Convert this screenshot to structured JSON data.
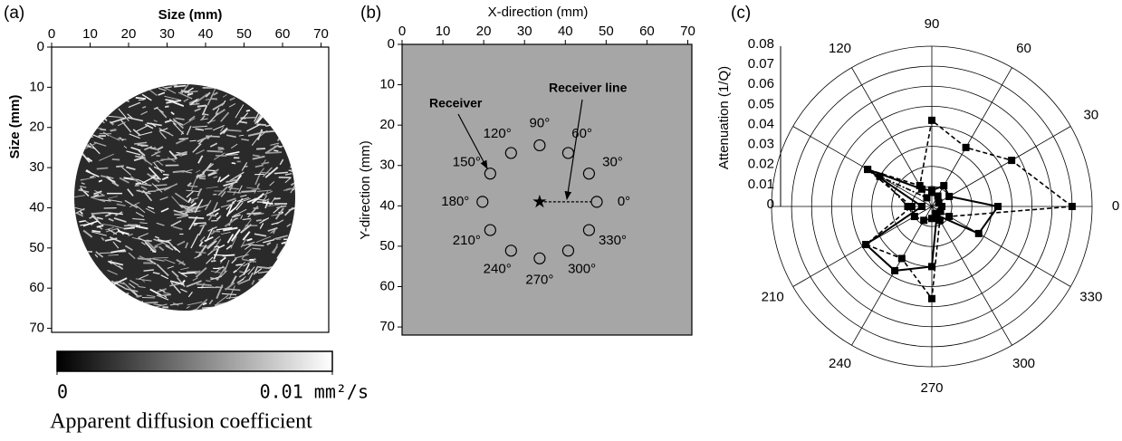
{
  "chart_data": [
    {
      "type": "image",
      "panel": "(a)",
      "xlabel": "Size (mm)",
      "ylabel": "Size (mm)",
      "xlim": [
        0,
        72
      ],
      "ylim": [
        71,
        0
      ],
      "xticks": [
        0,
        10,
        20,
        30,
        40,
        50,
        60,
        70
      ],
      "yticks": [
        0,
        10,
        20,
        30,
        40,
        50,
        60,
        70
      ],
      "colorbar": {
        "lim": [
          0,
          0.01
        ],
        "ticks": [
          0,
          {
            "value": 0.01,
            "label": "0.01 mm²/s"
          }
        ],
        "label": "Apparent diffusion coefficient"
      }
    },
    {
      "type": "scatter",
      "panel": "(b)",
      "xlabel": "X-direction (mm)",
      "ylabel": "Y-direction (mm)",
      "xlim": [
        0,
        71
      ],
      "ylim": [
        72,
        0
      ],
      "xticks": [
        0,
        10,
        20,
        30,
        40,
        50,
        60,
        70
      ],
      "yticks": [
        0,
        10,
        20,
        30,
        40,
        50,
        60,
        70
      ],
      "background": "#a6a6a6",
      "receivers": {
        "labels": [
          "0°",
          "30°",
          "60°",
          "90°",
          "120°",
          "150°",
          "180°",
          "210°",
          "240°",
          "270°",
          "300°",
          "330°"
        ],
        "x": [
          47.7,
          45.8,
          40.7,
          33.7,
          26.7,
          21.6,
          19.7,
          21.6,
          26.7,
          33.7,
          40.7,
          45.8
        ],
        "y": [
          39,
          32,
          26.9,
          25,
          26.9,
          32,
          39,
          46,
          51.1,
          53,
          51.1,
          46
        ]
      },
      "source": {
        "x": 33.7,
        "y": 39
      },
      "annotations": [
        "Receiver",
        "Receiver line"
      ]
    },
    {
      "type": "polar",
      "panel": "(c)",
      "rlabel": "Attenuation (1/Q)",
      "rlim": [
        0,
        0.08
      ],
      "rticks": [
        0,
        0.01,
        0.02,
        0.03,
        0.04,
        0.05,
        0.06,
        0.07,
        0.08
      ],
      "thetaticks": [
        0,
        30,
        60,
        90,
        120,
        {
          "value": 150,
          "label": null
        },
        {
          "value": 180,
          "label": null
        },
        210,
        240,
        270,
        300,
        330
      ],
      "theta": [
        0,
        30,
        60,
        90,
        120,
        150,
        180,
        210,
        240,
        270,
        300,
        330
      ],
      "series": [
        {
          "color": "#000000",
          "dash": "5,3",
          "values": [
            0.07,
            0.046,
            0.034,
            0.043,
            0.012,
            0.037,
            0.01,
            0.038,
            0.03,
            0.046,
            0.008,
            0.01
          ]
        },
        {
          "color": "#000000",
          "dash": "none",
          "values": [
            0.033,
            0.01,
            0.012,
            0.008,
            0.01,
            0.037,
            0.005,
            0.038,
            0.037,
            0.03,
            0.005,
            0.027
          ]
        },
        {
          "color": "#000000",
          "dash": "6,2,2,2",
          "values": [
            0.005,
            0.004,
            0.006,
            0.007,
            0.005,
            0.03,
            0.012,
            0.01,
            0.008,
            0.006,
            0.004,
            0.005
          ]
        }
      ]
    }
  ]
}
